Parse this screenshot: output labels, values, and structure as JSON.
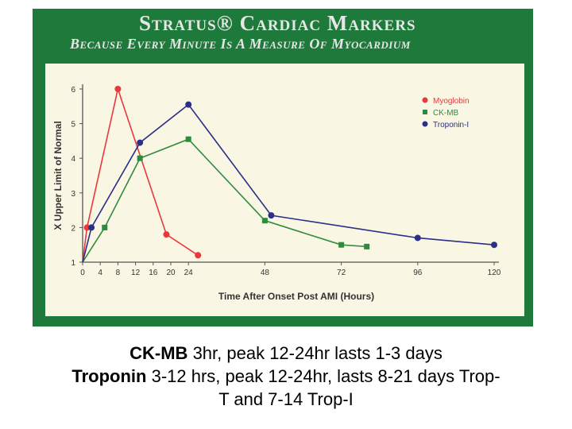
{
  "banner": {
    "title": "Stratus® Cardiac Markers",
    "subtitle": "Because Every Minute Is A Measure Of Myocardium"
  },
  "colors": {
    "panel": "#1e7a3a",
    "card": "#faf6e4",
    "myoglobin": "#e8383c",
    "ckmb": "#2e8b3e",
    "troponin": "#2b2f86"
  },
  "chart_data": {
    "type": "line",
    "xlabel": "Time After Onset Post AMI (Hours)",
    "ylabel": "X Upper Limit of Normal",
    "xlim": [
      0,
      120
    ],
    "ylim": [
      1,
      6
    ],
    "x_ticks": [
      "0",
      "4",
      "8",
      "12",
      "16",
      "20",
      "24",
      "48",
      "72",
      "96",
      "120"
    ],
    "y_ticks": [
      "1",
      "2",
      "3",
      "4",
      "5",
      "6"
    ],
    "legend_position": "top-right",
    "grid": false,
    "series": [
      {
        "name": "Myoglobin",
        "marker": "circle",
        "color": "#e8383c",
        "x": [
          1,
          8,
          19,
          27
        ],
        "y": [
          2.0,
          6.0,
          1.8,
          1.2
        ]
      },
      {
        "name": "CK-MB",
        "marker": "square",
        "color": "#2e8b3e",
        "x": [
          5,
          13,
          24,
          48,
          72,
          80
        ],
        "y": [
          2.0,
          4.0,
          4.55,
          2.2,
          1.5,
          1.45
        ]
      },
      {
        "name": "Troponin-I",
        "marker": "circle",
        "color": "#2b2f86",
        "x": [
          2,
          13,
          24,
          50,
          96,
          120
        ],
        "y": [
          2.0,
          4.45,
          5.55,
          2.35,
          1.7,
          1.5
        ]
      }
    ]
  },
  "caption": {
    "line1_bold": "CK-MB",
    "line1_rest": " 3hr, peak 12-24hr lasts 1-3 days",
    "line2_bold": "Troponin",
    "line2_rest": " 3-12 hrs, peak 12-24hr, lasts 8-21 days Trop-",
    "line3": "T and 7-14 Trop-I"
  }
}
